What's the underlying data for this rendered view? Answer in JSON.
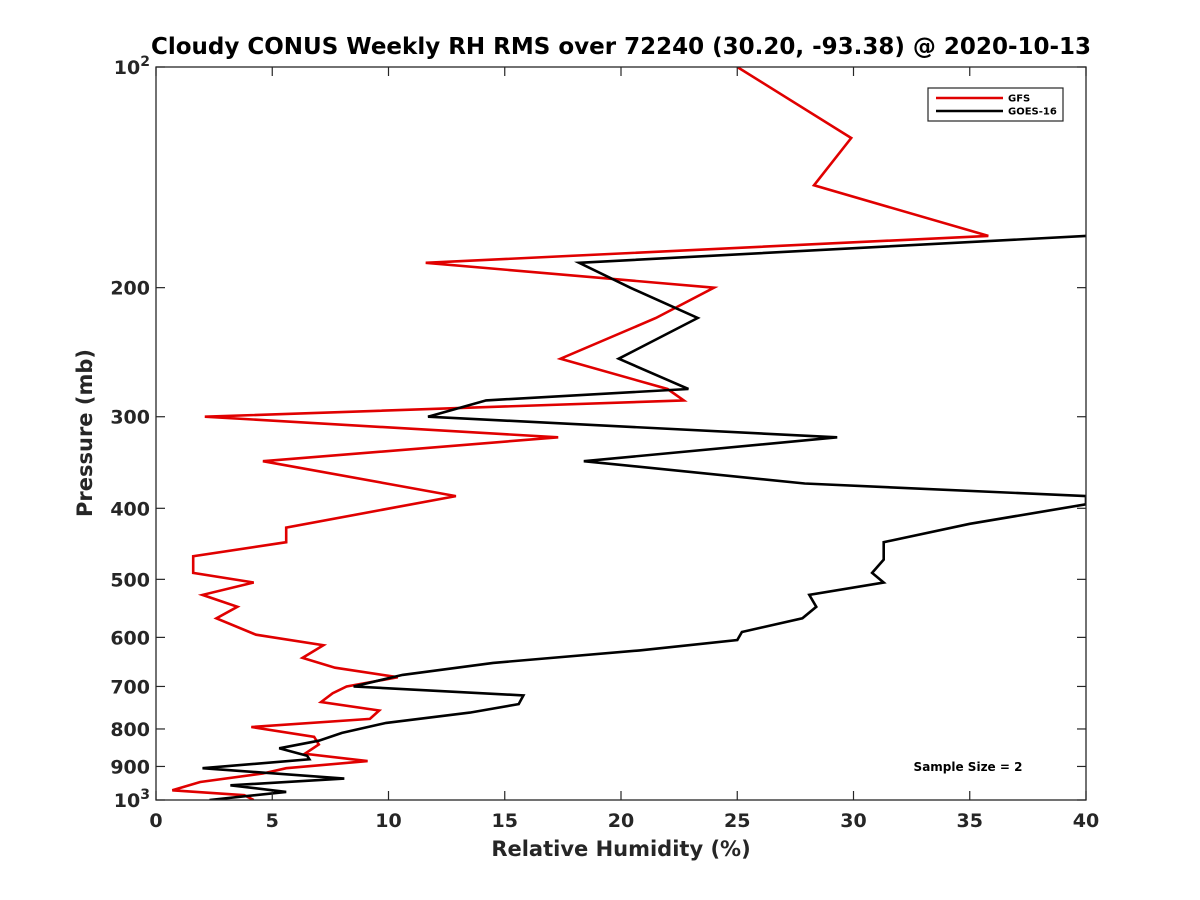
{
  "chart_data": {
    "type": "line",
    "title": "Cloudy CONUS Weekly RH RMS over 72240 (30.20, -93.38) @ 2020-10-13",
    "xlabel": "Relative Humidity (%)",
    "ylabel": "Pressure (mb)",
    "xlim": [
      0,
      40
    ],
    "ylim": [
      100,
      1000
    ],
    "yscale": "log",
    "y_reversed": true,
    "xticks": [
      0,
      5,
      10,
      15,
      20,
      25,
      30,
      35,
      40
    ],
    "xtick_labels": [
      "0",
      "5",
      "10",
      "15",
      "20",
      "25",
      "30",
      "35",
      "40"
    ],
    "yticks": [
      100,
      200,
      300,
      400,
      500,
      600,
      700,
      800,
      900,
      1000
    ],
    "ytick_labels": [
      {
        "base": "10",
        "exp": "2"
      },
      {
        "base": "200",
        "exp": ""
      },
      {
        "base": "300",
        "exp": ""
      },
      {
        "base": "400",
        "exp": ""
      },
      {
        "base": "500",
        "exp": ""
      },
      {
        "base": "600",
        "exp": ""
      },
      {
        "base": "700",
        "exp": ""
      },
      {
        "base": "800",
        "exp": ""
      },
      {
        "base": "900",
        "exp": ""
      },
      {
        "base": "10",
        "exp": "3"
      }
    ],
    "grid": false,
    "legend_position": "top-right",
    "annotation": "Sample Size = 2",
    "series": [
      {
        "name": "GFS",
        "color": "#e00000",
        "points": [
          [
            25.0,
            100
          ],
          [
            29.9,
            125
          ],
          [
            28.3,
            145
          ],
          [
            35.8,
            170
          ],
          [
            11.6,
            185
          ],
          [
            24.0,
            200
          ],
          [
            21.5,
            220
          ],
          [
            17.4,
            250
          ],
          [
            22.0,
            275
          ],
          [
            22.7,
            285
          ],
          [
            2.1,
            300
          ],
          [
            17.3,
            320
          ],
          [
            4.6,
            345
          ],
          [
            9.9,
            370
          ],
          [
            12.9,
            385
          ],
          [
            5.6,
            425
          ],
          [
            5.6,
            445
          ],
          [
            1.6,
            465
          ],
          [
            1.6,
            490
          ],
          [
            4.2,
            505
          ],
          [
            2.0,
            525
          ],
          [
            3.5,
            545
          ],
          [
            2.6,
            565
          ],
          [
            4.3,
            595
          ],
          [
            7.2,
            615
          ],
          [
            6.3,
            640
          ],
          [
            7.7,
            660
          ],
          [
            10.4,
            680
          ],
          [
            8.2,
            700
          ],
          [
            7.6,
            715
          ],
          [
            7.1,
            735
          ],
          [
            9.6,
            755
          ],
          [
            9.2,
            775
          ],
          [
            4.1,
            795
          ],
          [
            6.8,
            820
          ],
          [
            7.0,
            840
          ],
          [
            6.4,
            865
          ],
          [
            9.1,
            885
          ],
          [
            5.6,
            905
          ],
          [
            4.6,
            920
          ],
          [
            1.9,
            945
          ],
          [
            0.7,
            970
          ],
          [
            3.8,
            985
          ],
          [
            4.2,
            1000
          ]
        ]
      },
      {
        "name": "GOES-16",
        "color": "#000000",
        "points": [
          [
            40.0,
            170
          ],
          [
            18.2,
            185
          ],
          [
            20.4,
            200
          ],
          [
            23.3,
            220
          ],
          [
            19.9,
            250
          ],
          [
            22.9,
            275
          ],
          [
            14.2,
            285
          ],
          [
            11.7,
            300
          ],
          [
            29.3,
            320
          ],
          [
            18.4,
            345
          ],
          [
            27.9,
            370
          ],
          [
            40.0,
            385
          ],
          [
            40.0,
            395
          ],
          [
            35.0,
            420
          ],
          [
            31.3,
            445
          ],
          [
            31.3,
            470
          ],
          [
            30.8,
            490
          ],
          [
            31.3,
            505
          ],
          [
            28.1,
            525
          ],
          [
            28.4,
            545
          ],
          [
            27.8,
            565
          ],
          [
            25.2,
            590
          ],
          [
            25.0,
            605
          ],
          [
            20.8,
            625
          ],
          [
            14.5,
            650
          ],
          [
            10.6,
            675
          ],
          [
            8.5,
            700
          ],
          [
            15.8,
            720
          ],
          [
            15.6,
            740
          ],
          [
            13.5,
            760
          ],
          [
            9.9,
            785
          ],
          [
            8.0,
            810
          ],
          [
            7.0,
            830
          ],
          [
            5.3,
            850
          ],
          [
            6.5,
            870
          ],
          [
            6.6,
            880
          ],
          [
            2.0,
            905
          ],
          [
            8.1,
            935
          ],
          [
            3.2,
            955
          ],
          [
            5.6,
            975
          ],
          [
            2.3,
            1000
          ]
        ]
      }
    ]
  },
  "colors": {
    "axis": "#262626",
    "gfs": "#e00000",
    "goes": "#000000",
    "background": "#ffffff"
  }
}
